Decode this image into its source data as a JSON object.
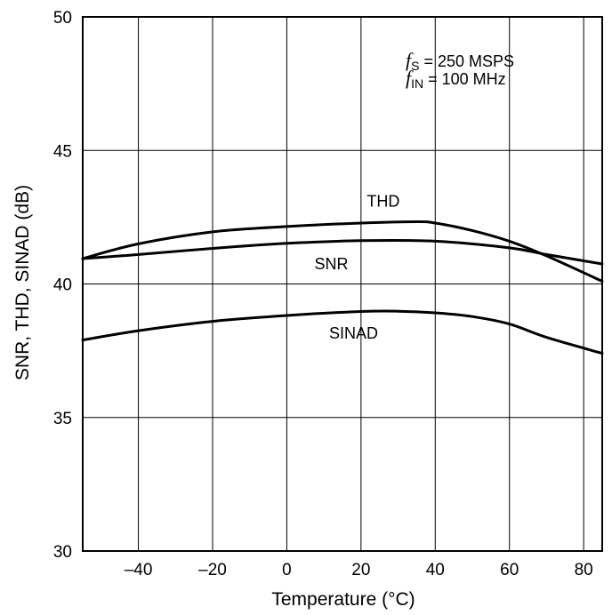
{
  "chart_data": {
    "type": "line",
    "xlabel": "Temperature (°C)",
    "ylabel": "SNR, THD, SINAD (dB)",
    "xlim": [
      -55,
      85
    ],
    "ylim": [
      30,
      50
    ],
    "x_ticks": [
      -40,
      -20,
      0,
      20,
      40,
      60,
      80
    ],
    "x_tick_labels": [
      "–40",
      "–20",
      "0",
      "20",
      "40",
      "60",
      "80"
    ],
    "y_ticks": [
      30,
      35,
      40,
      45,
      50
    ],
    "y_tick_labels": [
      "30",
      "35",
      "40",
      "45",
      "50"
    ],
    "grid": true,
    "legend": "none",
    "annotation": {
      "line1": {
        "f": "f",
        "sub": "S",
        "rest": " = 250 MSPS"
      },
      "line2": {
        "f": "f",
        "sub": "IN",
        "rest": " = 100 MHz"
      }
    },
    "series": [
      {
        "name": "THD",
        "x": [
          -55,
          -40,
          -20,
          0,
          20,
          35,
          40,
          50,
          60,
          70,
          85
        ],
        "y": [
          40.95,
          41.5,
          41.95,
          42.15,
          42.28,
          42.33,
          42.28,
          42.0,
          41.6,
          41.05,
          40.1
        ]
      },
      {
        "name": "SNR",
        "x": [
          -55,
          -40,
          -20,
          0,
          20,
          40,
          60,
          70,
          85
        ],
        "y": [
          40.95,
          41.1,
          41.33,
          41.52,
          41.62,
          41.6,
          41.35,
          41.1,
          40.75
        ]
      },
      {
        "name": "SINAD",
        "x": [
          -55,
          -40,
          -20,
          0,
          20,
          30,
          40,
          50,
          60,
          70,
          85
        ],
        "y": [
          37.9,
          38.25,
          38.6,
          38.82,
          38.97,
          38.98,
          38.92,
          38.78,
          38.5,
          38.0,
          37.4
        ]
      }
    ]
  }
}
